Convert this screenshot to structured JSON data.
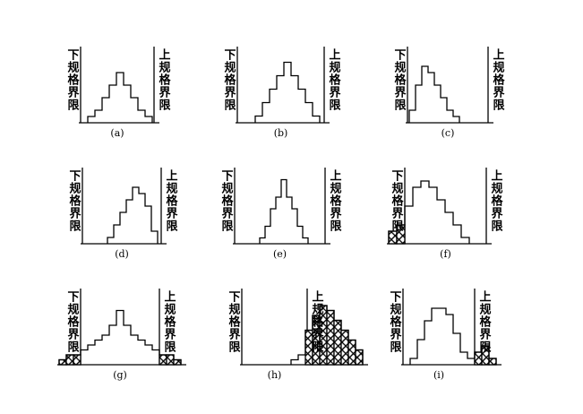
{
  "panels": [
    {
      "lower_limit": "下规格界限",
      "upper_limit": "上规格界限",
      "caption": "(a)"
    },
    {
      "lower_limit": "下规格界限",
      "upper_limit": "上规格界限",
      "caption": "(b)"
    },
    {
      "lower_limit": "下规格界限",
      "upper_limit": "上规格界限",
      "caption": "(c)"
    },
    {
      "lower_limit": "下规格界限",
      "upper_limit": "上规格界限",
      "caption": "(d)"
    },
    {
      "lower_limit": "下规格界限",
      "upper_limit": "上规格界限",
      "caption": "(e)"
    },
    {
      "lower_limit": "下规格界限",
      "upper_limit": "上规格界限",
      "caption": "(f)"
    },
    {
      "lower_limit": "下规格界限",
      "upper_limit": "上规格界限",
      "caption": "(g)"
    },
    {
      "lower_limit": "下规格界限",
      "upper_limit": "上规格界限",
      "caption": "(h)"
    },
    {
      "lower_limit": "下规格界限",
      "upper_limit": "上规格界限",
      "caption": "(i)"
    }
  ]
}
